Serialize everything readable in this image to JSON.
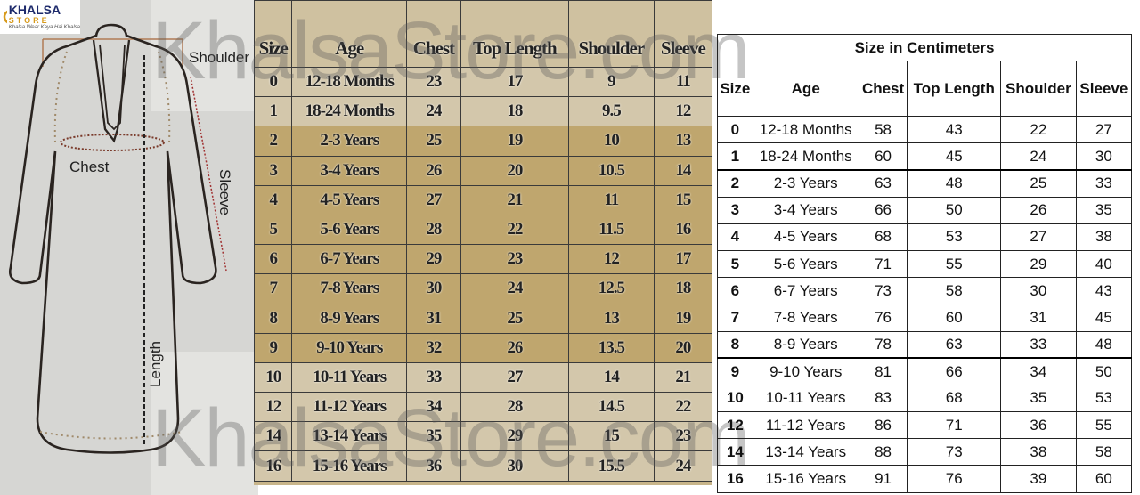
{
  "logo": {
    "brand": "KHALSA",
    "sub": "STORE",
    "tagline": "Khalsa Wear Kaya Hai Khalsa"
  },
  "watermark": "KhalsaStore.com",
  "diagram": {
    "labels": {
      "shoulder": "Shoulder",
      "chest": "Chest",
      "sleeve": "Sleeve",
      "length": "Length"
    }
  },
  "inches_table": {
    "headers": [
      "Size",
      "Age",
      "Chest",
      "Top Length",
      "Shoulder",
      "Sleeve"
    ],
    "rows": [
      [
        "0",
        "12-18 Months",
        "23",
        "17",
        "9",
        "11"
      ],
      [
        "1",
        "18-24 Months",
        "24",
        "18",
        "9.5",
        "12"
      ],
      [
        "2",
        "2-3 Years",
        "25",
        "19",
        "10",
        "13"
      ],
      [
        "3",
        "3-4 Years",
        "26",
        "20",
        "10.5",
        "14"
      ],
      [
        "4",
        "4-5 Years",
        "27",
        "21",
        "11",
        "15"
      ],
      [
        "5",
        "5-6 Years",
        "28",
        "22",
        "11.5",
        "16"
      ],
      [
        "6",
        "6-7 Years",
        "29",
        "23",
        "12",
        "17"
      ],
      [
        "7",
        "7-8 Years",
        "30",
        "24",
        "12.5",
        "18"
      ],
      [
        "8",
        "8-9 Years",
        "31",
        "25",
        "13",
        "19"
      ],
      [
        "9",
        "9-10 Years",
        "32",
        "26",
        "13.5",
        "20"
      ],
      [
        "10",
        "10-11 Years",
        "33",
        "27",
        "14",
        "21"
      ],
      [
        "12",
        "11-12 Years",
        "34",
        "28",
        "14.5",
        "22"
      ],
      [
        "14",
        "13-14 Years",
        "35",
        "29",
        "15",
        "23"
      ],
      [
        "16",
        "15-16 Years",
        "36",
        "30",
        "15.5",
        "24"
      ]
    ]
  },
  "cm_table": {
    "title": "Size in Centimeters",
    "headers": [
      "Size",
      "Age",
      "Chest",
      "Top Length",
      "Shoulder",
      "Sleeve"
    ],
    "rows": [
      [
        "0",
        "12-18 Months",
        "58",
        "43",
        "22",
        "27"
      ],
      [
        "1",
        "18-24 Months",
        "60",
        "45",
        "24",
        "30"
      ],
      [
        "2",
        "2-3 Years",
        "63",
        "48",
        "25",
        "33"
      ],
      [
        "3",
        "3-4 Years",
        "66",
        "50",
        "26",
        "35"
      ],
      [
        "4",
        "4-5 Years",
        "68",
        "53",
        "27",
        "38"
      ],
      [
        "5",
        "5-6 Years",
        "71",
        "55",
        "29",
        "40"
      ],
      [
        "6",
        "6-7 Years",
        "73",
        "58",
        "30",
        "43"
      ],
      [
        "7",
        "7-8 Years",
        "76",
        "60",
        "31",
        "45"
      ],
      [
        "8",
        "8-9 Years",
        "78",
        "63",
        "33",
        "48"
      ],
      [
        "9",
        "9-10 Years",
        "81",
        "66",
        "34",
        "50"
      ],
      [
        "10",
        "10-11 Years",
        "83",
        "68",
        "35",
        "53"
      ],
      [
        "12",
        "11-12 Years",
        "86",
        "71",
        "36",
        "55"
      ],
      [
        "14",
        "13-14 Years",
        "88",
        "73",
        "38",
        "58"
      ],
      [
        "16",
        "15-16 Years",
        "91",
        "76",
        "39",
        "60"
      ]
    ]
  }
}
